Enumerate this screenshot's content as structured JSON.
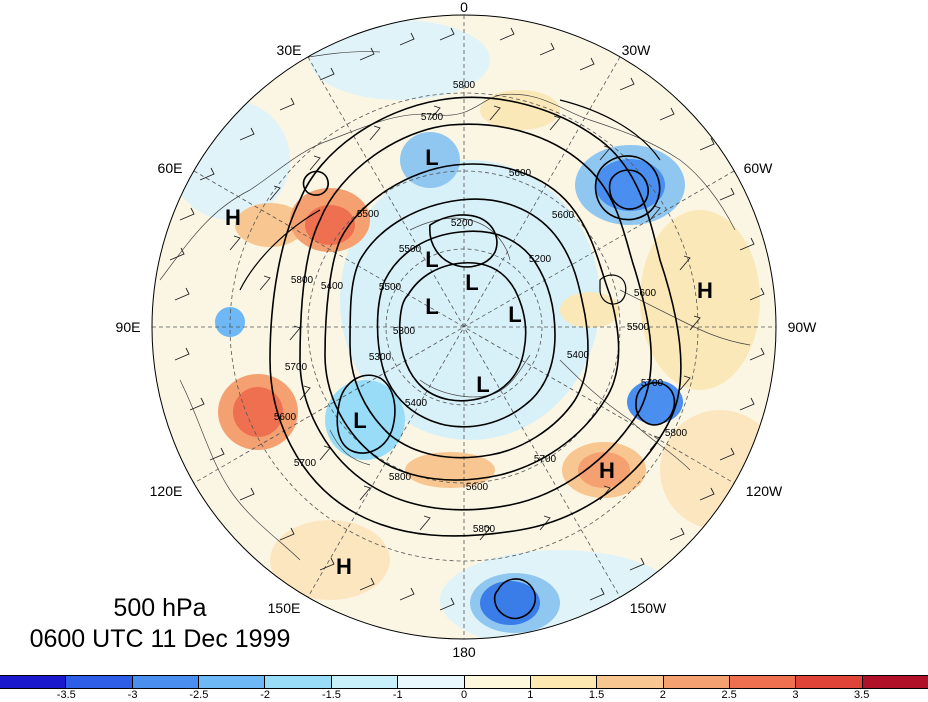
{
  "caption": {
    "level": "500 hPa",
    "time": "0600 UTC 11 Dec 1999"
  },
  "longitude_labels": [
    "0",
    "30W",
    "60W",
    "90W",
    "120W",
    "150W",
    "180",
    "150E",
    "120E",
    "90E",
    "60E",
    "30E"
  ],
  "contour_labels": [
    "5800",
    "5700",
    "5600",
    "5500",
    "5400",
    "5300",
    "5200",
    "5800",
    "5700",
    "5600",
    "5500",
    "5400",
    "5300",
    "5600",
    "5800",
    "5700",
    "5800",
    "5700",
    "5600",
    "5500",
    "5200",
    "5400",
    "5800",
    "5700",
    "5600",
    "5500"
  ],
  "pressure_centers": [
    "L",
    "L",
    "L",
    "L",
    "L",
    "L",
    "L",
    "H",
    "H",
    "H",
    "H"
  ],
  "colorbar": {
    "colors": [
      "#1a1acc",
      "#2e5ee6",
      "#4a8ef0",
      "#6db8f5",
      "#98dcf8",
      "#c8f0fb",
      "#e8f8fc",
      "#fdf8dc",
      "#fce8b0",
      "#f8c690",
      "#f5a070",
      "#ee7050",
      "#e04438",
      "#b01028"
    ],
    "tick_labels": [
      "-3.5",
      "-3",
      "-2.5",
      "-2",
      "-1.5",
      "-1",
      "0",
      "1",
      "1.5",
      "2",
      "2.5",
      "3",
      "3.5"
    ]
  }
}
